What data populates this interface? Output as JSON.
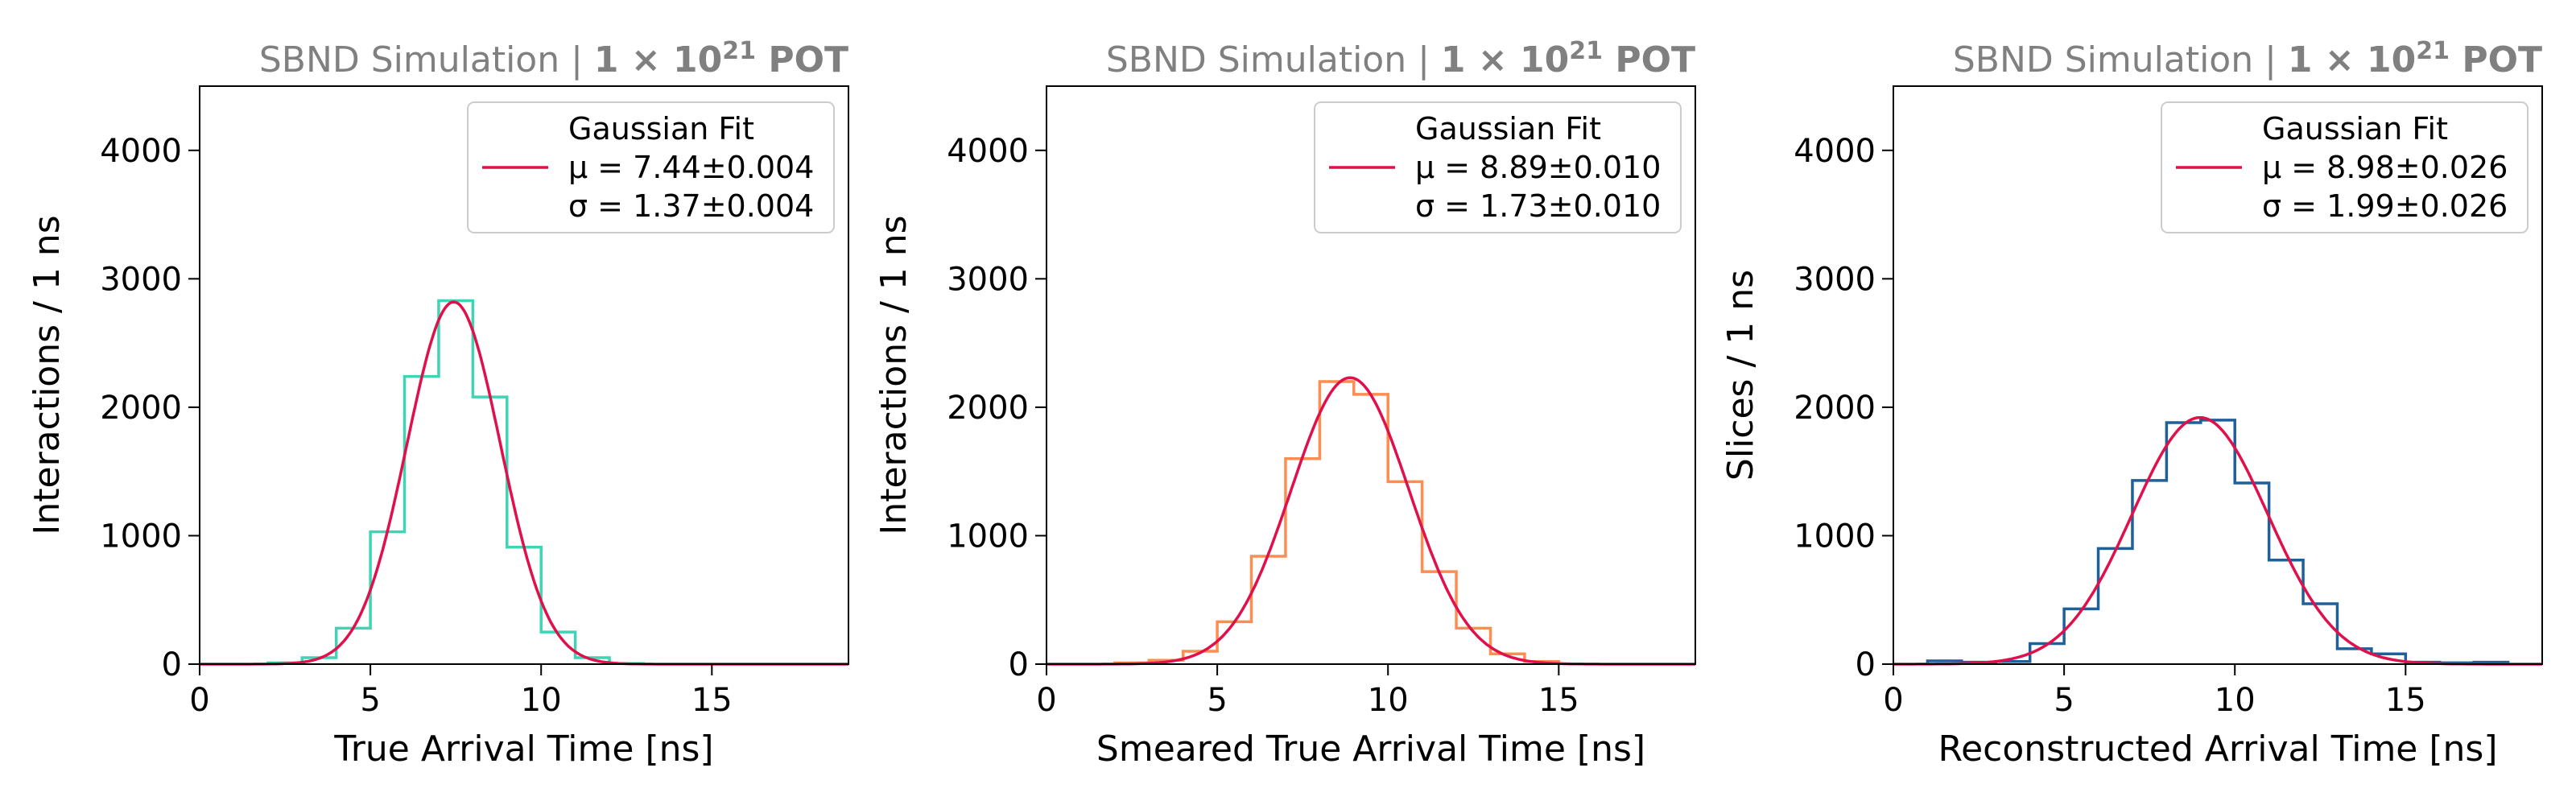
{
  "chart_data": [
    {
      "type": "histogram",
      "title": {
        "prefix": "SBND Simulation | ",
        "bold_base": "1 × 10",
        "bold_exp": "21",
        "bold_suffix": " POT"
      },
      "xlabel": "True Arrival Time [ns]",
      "ylabel": "Interactions / 1 ns",
      "xlim": [
        0,
        19
      ],
      "ylim": [
        0,
        4500
      ],
      "xticks": [
        0,
        5,
        10,
        15
      ],
      "yticks": [
        0,
        1000,
        2000,
        3000,
        4000
      ],
      "hist_color": "#40d4b4",
      "fit_color": "#e0104a",
      "bin_edges": [
        2,
        3,
        4,
        5,
        6,
        7,
        8,
        9,
        10,
        11,
        12,
        13
      ],
      "counts": [
        10,
        50,
        280,
        1030,
        2240,
        2830,
        2080,
        910,
        250,
        50,
        5
      ],
      "fit": {
        "mu": 7.44,
        "sigma": 1.37,
        "amplitude": 2820
      },
      "legend": {
        "title": "Gaussian Fit",
        "mu_line": "μ = 7.44±0.004",
        "sigma_line": "σ = 1.37±0.004"
      }
    },
    {
      "type": "histogram",
      "title": {
        "prefix": "SBND Simulation | ",
        "bold_base": "1 × 10",
        "bold_exp": "21",
        "bold_suffix": " POT"
      },
      "xlabel": "Smeared True Arrival Time [ns]",
      "ylabel": "Interactions / 1 ns",
      "xlim": [
        0,
        19
      ],
      "ylim": [
        0,
        4500
      ],
      "xticks": [
        0,
        5,
        10,
        15
      ],
      "yticks": [
        0,
        1000,
        2000,
        3000,
        4000
      ],
      "hist_color": "#ff8c50",
      "fit_color": "#e0104a",
      "bin_edges": [
        2,
        3,
        4,
        5,
        6,
        7,
        8,
        9,
        10,
        11,
        12,
        13,
        14,
        15
      ],
      "counts": [
        10,
        30,
        100,
        330,
        840,
        1600,
        2200,
        2100,
        1420,
        720,
        280,
        80,
        20
      ],
      "fit": {
        "mu": 8.89,
        "sigma": 1.73,
        "amplitude": 2230
      },
      "legend": {
        "title": "Gaussian Fit",
        "mu_line": "μ = 8.89±0.010",
        "sigma_line": "σ = 1.73±0.010"
      }
    },
    {
      "type": "histogram",
      "title": {
        "prefix": "SBND Simulation | ",
        "bold_base": "1 × 10",
        "bold_exp": "21",
        "bold_suffix": " POT"
      },
      "xlabel": "Reconstructed Arrival Time [ns]",
      "ylabel": "Slices / 1 ns",
      "xlim": [
        0,
        19
      ],
      "ylim": [
        0,
        4500
      ],
      "xticks": [
        0,
        5,
        10,
        15
      ],
      "yticks": [
        0,
        1000,
        2000,
        3000,
        4000
      ],
      "hist_color": "#1f5f9a",
      "fit_color": "#e0104a",
      "bin_edges": [
        1,
        2,
        3,
        4,
        5,
        6,
        7,
        8,
        9,
        10,
        11,
        12,
        13,
        14,
        15,
        16,
        17,
        18
      ],
      "counts": [
        25,
        15,
        20,
        160,
        430,
        900,
        1430,
        1880,
        1900,
        1410,
        810,
        470,
        120,
        80,
        15,
        10,
        15
      ],
      "fit": {
        "mu": 8.98,
        "sigma": 1.99,
        "amplitude": 1920
      },
      "legend": {
        "title": "Gaussian Fit",
        "mu_line": "μ = 8.98±0.026",
        "sigma_line": "σ = 1.99±0.026"
      }
    }
  ]
}
